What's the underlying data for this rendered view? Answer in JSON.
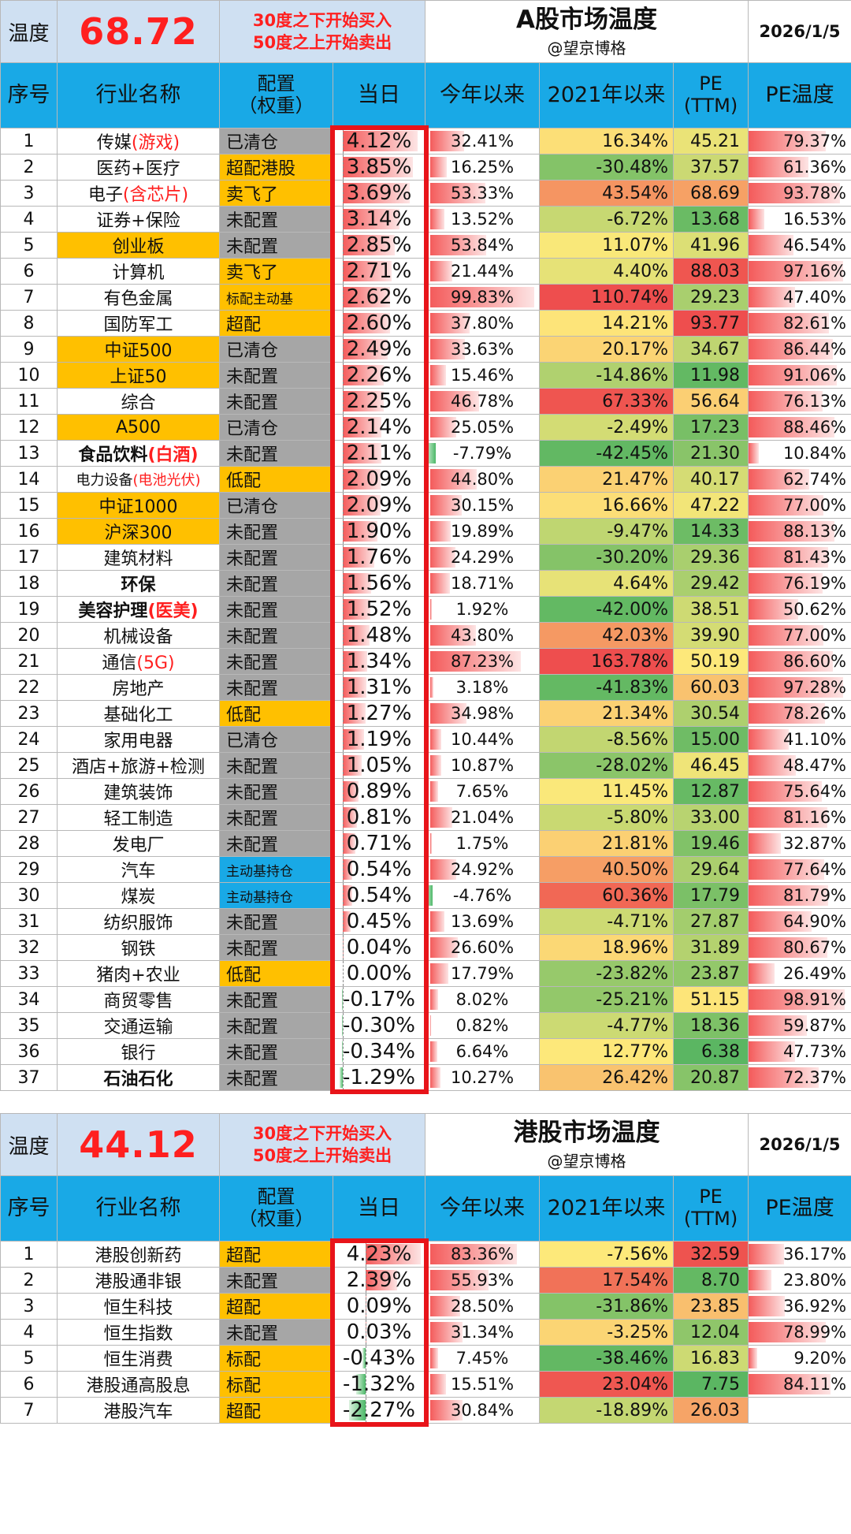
{
  "a_share": {
    "temp_label": "温度",
    "temperature": "68.72",
    "note_line1": "30度之下开始买入",
    "note_line2": "50度之上开始卖出",
    "title": "A股市场温度",
    "author": "@望京博格",
    "date": "2026/1/5",
    "headers": {
      "idx": "序号",
      "industry": "行业名称",
      "config_line1": "配置",
      "config_line2": "（权重）",
      "day": "当日",
      "ytd": "今年以来",
      "since2021": "2021年以来",
      "pe_line1": "PE",
      "pe_line2": "(TTM)",
      "pe_temp": "PE温度"
    },
    "rows": [
      {
        "idx": "1",
        "name": "传媒",
        "sub": "(游戏)",
        "cfg": "已清仓",
        "cfg_color": "gray",
        "day": "4.12%",
        "ytd": "32.41%",
        "since": "16.34%",
        "pe": "45.21",
        "pet": "79.37%",
        "hl": false,
        "small": false,
        "bold": false
      },
      {
        "idx": "2",
        "name": "医药+医疗",
        "sub": "",
        "cfg": "超配港股",
        "cfg_color": "orange",
        "day": "3.85%",
        "ytd": "16.25%",
        "since": "-30.48%",
        "pe": "37.57",
        "pet": "61.36%",
        "hl": false,
        "small": false,
        "bold": false
      },
      {
        "idx": "3",
        "name": "电子",
        "sub": "(含芯片)",
        "cfg": "卖飞了",
        "cfg_color": "orange",
        "day": "3.69%",
        "ytd": "53.33%",
        "since": "43.54%",
        "pe": "68.69",
        "pet": "93.78%",
        "hl": false,
        "small": false,
        "bold": false
      },
      {
        "idx": "4",
        "name": "证券+保险",
        "sub": "",
        "cfg": "未配置",
        "cfg_color": "gray",
        "day": "3.14%",
        "ytd": "13.52%",
        "since": "-6.72%",
        "pe": "13.68",
        "pet": "16.53%",
        "hl": false,
        "small": false,
        "bold": false
      },
      {
        "idx": "5",
        "name": "创业板",
        "sub": "",
        "cfg": "未配置",
        "cfg_color": "gray",
        "day": "2.85%",
        "ytd": "53.84%",
        "since": "11.07%",
        "pe": "41.96",
        "pet": "46.54%",
        "hl": true,
        "small": false,
        "bold": false
      },
      {
        "idx": "6",
        "name": "计算机",
        "sub": "",
        "cfg": "卖飞了",
        "cfg_color": "orange",
        "day": "2.71%",
        "ytd": "21.44%",
        "since": "4.40%",
        "pe": "88.03",
        "pet": "97.16%",
        "hl": false,
        "small": false,
        "bold": false
      },
      {
        "idx": "7",
        "name": "有色金属",
        "sub": "",
        "cfg": "标配主动基",
        "cfg_color": "orange",
        "day": "2.62%",
        "ytd": "99.83%",
        "since": "110.74%",
        "pe": "29.23",
        "pet": "47.40%",
        "hl": false,
        "small": false,
        "bold": false
      },
      {
        "idx": "8",
        "name": "国防军工",
        "sub": "",
        "cfg": "超配",
        "cfg_color": "orange",
        "day": "2.60%",
        "ytd": "37.80%",
        "since": "14.21%",
        "pe": "93.77",
        "pet": "82.61%",
        "hl": false,
        "small": false,
        "bold": false
      },
      {
        "idx": "9",
        "name": "中证500",
        "sub": "",
        "cfg": "已清仓",
        "cfg_color": "gray",
        "day": "2.49%",
        "ytd": "33.63%",
        "since": "20.17%",
        "pe": "34.67",
        "pet": "86.44%",
        "hl": true,
        "small": false,
        "bold": false
      },
      {
        "idx": "10",
        "name": "上证50",
        "sub": "",
        "cfg": "未配置",
        "cfg_color": "gray",
        "day": "2.26%",
        "ytd": "15.46%",
        "since": "-14.86%",
        "pe": "11.98",
        "pet": "91.06%",
        "hl": true,
        "small": false,
        "bold": false
      },
      {
        "idx": "11",
        "name": "综合",
        "sub": "",
        "cfg": "未配置",
        "cfg_color": "gray",
        "day": "2.25%",
        "ytd": "46.78%",
        "since": "67.33%",
        "pe": "56.64",
        "pet": "76.13%",
        "hl": false,
        "small": false,
        "bold": false
      },
      {
        "idx": "12",
        "name": "A500",
        "sub": "",
        "cfg": "已清仓",
        "cfg_color": "gray",
        "day": "2.14%",
        "ytd": "25.05%",
        "since": "-2.49%",
        "pe": "17.23",
        "pet": "88.46%",
        "hl": true,
        "small": false,
        "bold": false
      },
      {
        "idx": "13",
        "name": "食品饮料",
        "sub": "(白酒)",
        "cfg": "未配置",
        "cfg_color": "gray",
        "day": "2.11%",
        "ytd": "-7.79%",
        "since": "-42.45%",
        "pe": "21.30",
        "pet": "10.84%",
        "hl": false,
        "small": false,
        "bold": true
      },
      {
        "idx": "14",
        "name": "电力设备",
        "sub": "(电池光伏)",
        "cfg": "低配",
        "cfg_color": "orange",
        "day": "2.09%",
        "ytd": "44.80%",
        "since": "21.47%",
        "pe": "40.17",
        "pet": "62.74%",
        "hl": false,
        "small": true,
        "bold": false
      },
      {
        "idx": "15",
        "name": "中证1000",
        "sub": "",
        "cfg": "已清仓",
        "cfg_color": "gray",
        "day": "2.09%",
        "ytd": "30.15%",
        "since": "16.66%",
        "pe": "47.22",
        "pet": "77.00%",
        "hl": true,
        "small": false,
        "bold": false
      },
      {
        "idx": "16",
        "name": "沪深300",
        "sub": "",
        "cfg": "未配置",
        "cfg_color": "gray",
        "day": "1.90%",
        "ytd": "19.89%",
        "since": "-9.47%",
        "pe": "14.33",
        "pet": "88.13%",
        "hl": true,
        "small": false,
        "bold": false
      },
      {
        "idx": "17",
        "name": "建筑材料",
        "sub": "",
        "cfg": "未配置",
        "cfg_color": "gray",
        "day": "1.76%",
        "ytd": "24.29%",
        "since": "-30.20%",
        "pe": "29.36",
        "pet": "81.43%",
        "hl": false,
        "small": false,
        "bold": false
      },
      {
        "idx": "18",
        "name": "环保",
        "sub": "",
        "cfg": "未配置",
        "cfg_color": "gray",
        "day": "1.56%",
        "ytd": "18.71%",
        "since": "4.64%",
        "pe": "29.42",
        "pet": "76.19%",
        "hl": false,
        "small": false,
        "bold": true
      },
      {
        "idx": "19",
        "name": "美容护理",
        "sub": "(医美)",
        "cfg": "未配置",
        "cfg_color": "gray",
        "day": "1.52%",
        "ytd": "1.92%",
        "since": "-42.00%",
        "pe": "38.51",
        "pet": "50.62%",
        "hl": false,
        "small": false,
        "bold": true
      },
      {
        "idx": "20",
        "name": "机械设备",
        "sub": "",
        "cfg": "未配置",
        "cfg_color": "gray",
        "day": "1.48%",
        "ytd": "43.80%",
        "since": "42.03%",
        "pe": "39.90",
        "pet": "77.00%",
        "hl": false,
        "small": false,
        "bold": false
      },
      {
        "idx": "21",
        "name": "通信",
        "sub": "(5G)",
        "cfg": "未配置",
        "cfg_color": "gray",
        "day": "1.34%",
        "ytd": "87.23%",
        "since": "163.78%",
        "pe": "50.19",
        "pet": "86.60%",
        "hl": false,
        "small": false,
        "bold": false
      },
      {
        "idx": "22",
        "name": "房地产",
        "sub": "",
        "cfg": "未配置",
        "cfg_color": "gray",
        "day": "1.31%",
        "ytd": "3.18%",
        "since": "-41.83%",
        "pe": "60.03",
        "pet": "97.28%",
        "hl": false,
        "small": false,
        "bold": false
      },
      {
        "idx": "23",
        "name": "基础化工",
        "sub": "",
        "cfg": "低配",
        "cfg_color": "orange",
        "day": "1.27%",
        "ytd": "34.98%",
        "since": "21.34%",
        "pe": "30.54",
        "pet": "78.26%",
        "hl": false,
        "small": false,
        "bold": false
      },
      {
        "idx": "24",
        "name": "家用电器",
        "sub": "",
        "cfg": "已清仓",
        "cfg_color": "gray",
        "day": "1.19%",
        "ytd": "10.44%",
        "since": "-8.56%",
        "pe": "15.00",
        "pet": "41.10%",
        "hl": false,
        "small": false,
        "bold": false
      },
      {
        "idx": "25",
        "name": "酒店+旅游+检测",
        "sub": "",
        "cfg": "未配置",
        "cfg_color": "gray",
        "day": "1.05%",
        "ytd": "10.87%",
        "since": "-28.02%",
        "pe": "46.45",
        "pet": "48.47%",
        "hl": false,
        "small": false,
        "bold": false
      },
      {
        "idx": "26",
        "name": "建筑装饰",
        "sub": "",
        "cfg": "未配置",
        "cfg_color": "gray",
        "day": "0.89%",
        "ytd": "7.65%",
        "since": "11.45%",
        "pe": "12.87",
        "pet": "75.64%",
        "hl": false,
        "small": false,
        "bold": false
      },
      {
        "idx": "27",
        "name": "轻工制造",
        "sub": "",
        "cfg": "未配置",
        "cfg_color": "gray",
        "day": "0.81%",
        "ytd": "21.04%",
        "since": "-5.80%",
        "pe": "33.00",
        "pet": "81.16%",
        "hl": false,
        "small": false,
        "bold": false
      },
      {
        "idx": "28",
        "name": "发电厂",
        "sub": "",
        "cfg": "未配置",
        "cfg_color": "gray",
        "day": "0.71%",
        "ytd": "1.75%",
        "since": "21.81%",
        "pe": "19.46",
        "pet": "32.87%",
        "hl": false,
        "small": false,
        "bold": false
      },
      {
        "idx": "29",
        "name": "汽车",
        "sub": "",
        "cfg": "主动基持仓",
        "cfg_color": "blue",
        "day": "0.54%",
        "ytd": "24.92%",
        "since": "40.50%",
        "pe": "29.64",
        "pet": "77.64%",
        "hl": false,
        "small": false,
        "bold": false
      },
      {
        "idx": "30",
        "name": "煤炭",
        "sub": "",
        "cfg": "主动基持仓",
        "cfg_color": "blue",
        "day": "0.54%",
        "ytd": "-4.76%",
        "since": "60.36%",
        "pe": "17.79",
        "pet": "81.79%",
        "hl": false,
        "small": false,
        "bold": false
      },
      {
        "idx": "31",
        "name": "纺织服饰",
        "sub": "",
        "cfg": "未配置",
        "cfg_color": "gray",
        "day": "0.45%",
        "ytd": "13.69%",
        "since": "-4.71%",
        "pe": "27.87",
        "pet": "64.90%",
        "hl": false,
        "small": false,
        "bold": false
      },
      {
        "idx": "32",
        "name": "钢铁",
        "sub": "",
        "cfg": "未配置",
        "cfg_color": "gray",
        "day": "0.04%",
        "ytd": "26.60%",
        "since": "18.96%",
        "pe": "31.89",
        "pet": "80.67%",
        "hl": false,
        "small": false,
        "bold": false
      },
      {
        "idx": "33",
        "name": "猪肉+农业",
        "sub": "",
        "cfg": "低配",
        "cfg_color": "orange",
        "day": "0.00%",
        "ytd": "17.79%",
        "since": "-23.82%",
        "pe": "23.87",
        "pet": "26.49%",
        "hl": false,
        "small": false,
        "bold": false
      },
      {
        "idx": "34",
        "name": "商贸零售",
        "sub": "",
        "cfg": "未配置",
        "cfg_color": "gray",
        "day": "-0.17%",
        "ytd": "8.02%",
        "since": "-25.21%",
        "pe": "51.15",
        "pet": "98.91%",
        "hl": false,
        "small": false,
        "bold": false
      },
      {
        "idx": "35",
        "name": "交通运输",
        "sub": "",
        "cfg": "未配置",
        "cfg_color": "gray",
        "day": "-0.30%",
        "ytd": "0.82%",
        "since": "-4.77%",
        "pe": "18.36",
        "pet": "59.87%",
        "hl": false,
        "small": false,
        "bold": false
      },
      {
        "idx": "36",
        "name": "银行",
        "sub": "",
        "cfg": "未配置",
        "cfg_color": "gray",
        "day": "-0.34%",
        "ytd": "6.64%",
        "since": "12.77%",
        "pe": "6.38",
        "pet": "47.73%",
        "hl": false,
        "small": false,
        "bold": false
      },
      {
        "idx": "37",
        "name": "石油石化",
        "sub": "",
        "cfg": "未配置",
        "cfg_color": "gray",
        "day": "-1.29%",
        "ytd": "10.27%",
        "since": "26.42%",
        "pe": "20.87",
        "pet": "72.37%",
        "hl": false,
        "small": false,
        "bold": true
      }
    ]
  },
  "hk_share": {
    "temp_label": "温度",
    "temperature": "44.12",
    "note_line1": "30度之下开始买入",
    "note_line2": "50度之上开始卖出",
    "title": "港股市场温度",
    "author": "@望京博格",
    "date": "2026/1/5",
    "headers": {
      "idx": "序号",
      "industry": "行业名称",
      "config_line1": "配置",
      "config_line2": "（权重）",
      "day": "当日",
      "ytd": "今年以来",
      "since2021": "2021年以来",
      "pe_line1": "PE",
      "pe_line2": "(TTM)",
      "pe_temp": "PE温度"
    },
    "rows": [
      {
        "idx": "1",
        "name": "港股创新药",
        "sub": "",
        "cfg": "超配",
        "cfg_color": "orange",
        "day": "4.23%",
        "ytd": "83.36%",
        "since": "-7.56%",
        "pe": "32.59",
        "pet": "36.17%",
        "hl": false,
        "small": false,
        "bold": false
      },
      {
        "idx": "2",
        "name": "港股通非银",
        "sub": "",
        "cfg": "未配置",
        "cfg_color": "gray",
        "day": "2.39%",
        "ytd": "55.93%",
        "since": "17.54%",
        "pe": "8.70",
        "pet": "23.80%",
        "hl": false,
        "small": false,
        "bold": false
      },
      {
        "idx": "3",
        "name": "恒生科技",
        "sub": "",
        "cfg": "超配",
        "cfg_color": "orange",
        "day": "0.09%",
        "ytd": "28.50%",
        "since": "-31.86%",
        "pe": "23.85",
        "pet": "36.92%",
        "hl": false,
        "small": false,
        "bold": false
      },
      {
        "idx": "4",
        "name": "恒生指数",
        "sub": "",
        "cfg": "未配置",
        "cfg_color": "gray",
        "day": "0.03%",
        "ytd": "31.34%",
        "since": "-3.25%",
        "pe": "12.04",
        "pet": "78.99%",
        "hl": false,
        "small": false,
        "bold": false
      },
      {
        "idx": "5",
        "name": "恒生消费",
        "sub": "",
        "cfg": "标配",
        "cfg_color": "orange",
        "day": "-0.43%",
        "ytd": "7.45%",
        "since": "-38.46%",
        "pe": "16.83",
        "pet": "9.20%",
        "hl": false,
        "small": false,
        "bold": false
      },
      {
        "idx": "6",
        "name": "港股通高股息",
        "sub": "",
        "cfg": "标配",
        "cfg_color": "orange",
        "day": "-1.32%",
        "ytd": "15.51%",
        "since": "23.04%",
        "pe": "7.75",
        "pet": "84.11%",
        "hl": false,
        "small": false,
        "bold": false
      },
      {
        "idx": "7",
        "name": "港股汽车",
        "sub": "",
        "cfg": "超配",
        "cfg_color": "orange",
        "day": "-2.27%",
        "ytd": "30.84%",
        "since": "-18.89%",
        "pe": "26.03",
        "pet": "",
        "hl": false,
        "small": false,
        "bold": false
      }
    ]
  },
  "colors": {
    "header_blue": "#19a9e6",
    "label_bg": "#cfe0f2",
    "highlight_orange": "#ffc000",
    "config_gray": "#a6a6a6",
    "temp_red": "#ff1f1f",
    "box_red": "#e8141a",
    "heat_low": "#5bb662",
    "heat_mid": "#fde97a",
    "heat_high": "#ee4e4e"
  }
}
